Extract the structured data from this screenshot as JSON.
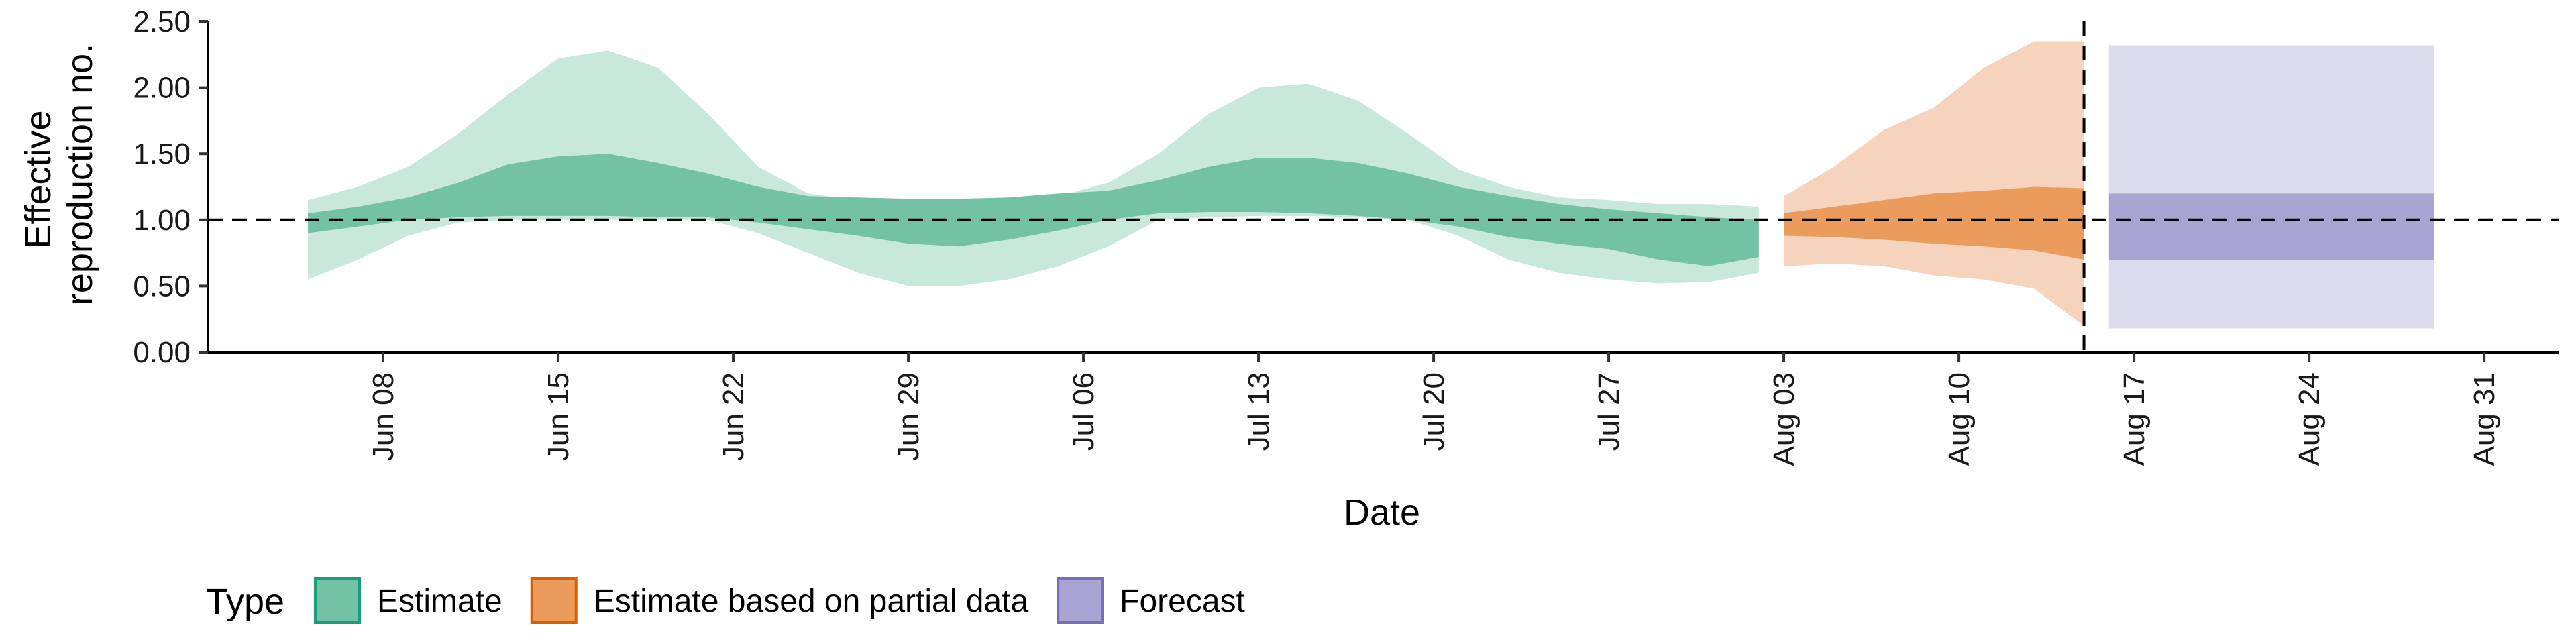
{
  "chart_data": {
    "type": "area",
    "xlabel": "Date",
    "ylabel_lines": [
      "Effective",
      "reproduction no."
    ],
    "xlim": [
      "2020-06-01",
      "2020-09-03"
    ],
    "ylim": [
      0,
      2.5
    ],
    "y_ticks": [
      0,
      0.5,
      1.0,
      1.5,
      2.0,
      2.5
    ],
    "y_tick_labels": [
      "0.00",
      "0.50",
      "1.00",
      "1.50",
      "2.00",
      "2.50"
    ],
    "x_ticks": [
      "2020-06-08",
      "2020-06-15",
      "2020-06-22",
      "2020-06-29",
      "2020-07-06",
      "2020-07-13",
      "2020-07-20",
      "2020-07-27",
      "2020-08-03",
      "2020-08-10",
      "2020-08-17",
      "2020-08-24",
      "2020-08-31"
    ],
    "x_tick_labels": [
      "Jun 08",
      "Jun 15",
      "Jun 22",
      "Jun 29",
      "Jul 06",
      "Jul 13",
      "Jul 20",
      "Jul 27",
      "Aug 03",
      "Aug 10",
      "Aug 17",
      "Aug 24",
      "Aug 31"
    ],
    "reference_line_y": 1.0,
    "vertical_line_x": "2020-08-15",
    "grid": false,
    "legend": {
      "title": "Type",
      "position": "bottom-left",
      "entries": [
        {
          "label": "Estimate",
          "fill": "#74c2a5",
          "stroke": "#1b9e77"
        },
        {
          "label": "Estimate based on partial data",
          "fill": "#eb9c5c",
          "stroke": "#d95f02"
        },
        {
          "label": "Forecast",
          "fill": "#a8a5d3",
          "stroke": "#7570b3"
        }
      ]
    },
    "series": [
      {
        "name": "Estimate",
        "color_outer": "#c7e8db",
        "color_inner": "#74c2a5",
        "x": [
          "2020-06-05",
          "2020-06-07",
          "2020-06-09",
          "2020-06-11",
          "2020-06-13",
          "2020-06-15",
          "2020-06-17",
          "2020-06-19",
          "2020-06-21",
          "2020-06-23",
          "2020-06-25",
          "2020-06-27",
          "2020-06-29",
          "2020-07-01",
          "2020-07-03",
          "2020-07-05",
          "2020-07-07",
          "2020-07-09",
          "2020-07-11",
          "2020-07-13",
          "2020-07-15",
          "2020-07-17",
          "2020-07-19",
          "2020-07-21",
          "2020-07-23",
          "2020-07-25",
          "2020-07-27",
          "2020-07-29",
          "2020-07-31",
          "2020-08-02"
        ],
        "upper_90": [
          1.15,
          1.25,
          1.4,
          1.65,
          1.95,
          2.22,
          2.28,
          2.15,
          1.8,
          1.4,
          1.2,
          1.15,
          1.12,
          1.13,
          1.15,
          1.18,
          1.28,
          1.5,
          1.8,
          2.0,
          2.03,
          1.9,
          1.65,
          1.38,
          1.25,
          1.17,
          1.15,
          1.12,
          1.12,
          1.1
        ],
        "lower_90": [
          0.55,
          0.7,
          0.88,
          0.98,
          1.0,
          1.0,
          1.0,
          1.0,
          1.0,
          0.9,
          0.75,
          0.6,
          0.5,
          0.5,
          0.55,
          0.65,
          0.8,
          1.0,
          1.02,
          1.03,
          1.03,
          1.02,
          1.0,
          0.88,
          0.7,
          0.6,
          0.55,
          0.52,
          0.53,
          0.6
        ],
        "upper_50": [
          1.05,
          1.1,
          1.17,
          1.28,
          1.42,
          1.48,
          1.5,
          1.43,
          1.35,
          1.25,
          1.18,
          1.17,
          1.16,
          1.16,
          1.17,
          1.2,
          1.22,
          1.3,
          1.4,
          1.47,
          1.47,
          1.43,
          1.35,
          1.25,
          1.18,
          1.12,
          1.08,
          1.05,
          1.02,
          1.0
        ],
        "lower_50": [
          0.9,
          0.95,
          1.0,
          1.02,
          1.03,
          1.03,
          1.03,
          1.02,
          1.02,
          0.98,
          0.93,
          0.88,
          0.82,
          0.8,
          0.85,
          0.92,
          1.0,
          1.05,
          1.06,
          1.06,
          1.05,
          1.03,
          1.0,
          0.95,
          0.87,
          0.82,
          0.78,
          0.7,
          0.65,
          0.72
        ]
      },
      {
        "name": "Estimate based on partial data",
        "color_outer": "#f5d3bc",
        "color_inner": "#eb9c5c",
        "x": [
          "2020-08-03",
          "2020-08-05",
          "2020-08-07",
          "2020-08-09",
          "2020-08-11",
          "2020-08-13",
          "2020-08-15"
        ],
        "upper_90": [
          1.18,
          1.4,
          1.68,
          1.85,
          2.15,
          2.35,
          2.35
        ],
        "lower_90": [
          0.65,
          0.67,
          0.65,
          0.58,
          0.55,
          0.48,
          0.2
        ],
        "upper_50": [
          1.05,
          1.1,
          1.15,
          1.2,
          1.22,
          1.25,
          1.24
        ],
        "lower_50": [
          0.88,
          0.87,
          0.85,
          0.82,
          0.8,
          0.77,
          0.7
        ]
      },
      {
        "name": "Forecast",
        "color_outer": "#dcdbee",
        "color_inner": "#a8a5d3",
        "x": [
          "2020-08-16",
          "2020-08-29"
        ],
        "upper_90": [
          2.32,
          2.32
        ],
        "lower_90": [
          0.18,
          0.18
        ],
        "upper_50": [
          1.2,
          1.2
        ],
        "lower_50": [
          0.7,
          0.7
        ]
      }
    ]
  }
}
